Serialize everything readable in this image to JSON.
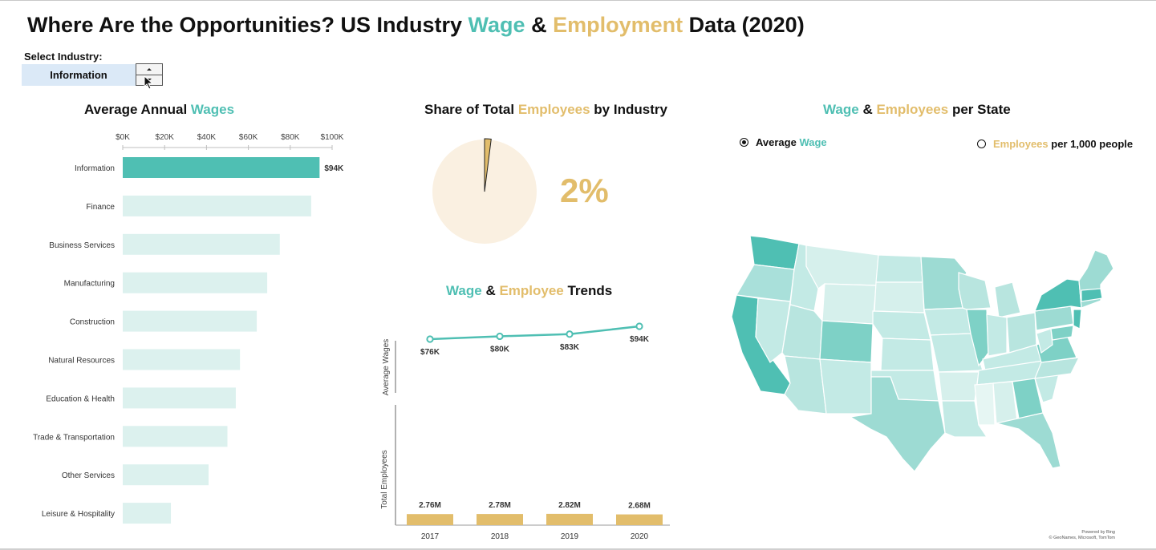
{
  "title": {
    "part1": "Where Are the Opportunities? US Industry ",
    "wage": "Wage",
    "amp": " & ",
    "employment": "Employment",
    "part2": " Data (2020)"
  },
  "selector": {
    "label": "Select Industry:",
    "value": "Information"
  },
  "wages_panel": {
    "title_a": "Average Annual ",
    "title_b": "Wages"
  },
  "share_panel": {
    "title_a": "Share of Total ",
    "title_b": "Employees",
    "title_c": " by Industry",
    "percent_label": "2%"
  },
  "trend_panel": {
    "title_a": "Wage",
    "title_b": " & ",
    "title_c": "Employee",
    "title_d": " Trends"
  },
  "state_panel": {
    "title_a": "Wage",
    "title_b": " & ",
    "title_c": "Employees",
    "title_d": " per State",
    "radio_wage_a": "Average ",
    "radio_wage_b": "Wage",
    "radio_emp_a": "Employees",
    "radio_emp_b": " per 1,000 people",
    "selected": "Average Wage",
    "credit_line1": "Powered by Bing",
    "credit_line2": "© GeoNames, Microsoft, TomTom"
  },
  "colors": {
    "teal": "#4fbfb3",
    "teal_light": "#dcf1ee",
    "gold": "#e2bd6b",
    "pie_light": "#faf0e1"
  },
  "chart_data": [
    {
      "type": "bar",
      "orientation": "horizontal",
      "title": "Average Annual Wages",
      "categories": [
        "Information",
        "Finance",
        "Business Services",
        "Manufacturing",
        "Construction",
        "Natural Resources",
        "Education & Health",
        "Trade & Transportation",
        "Other Services",
        "Leisure & Hospitality"
      ],
      "values": [
        94,
        90,
        75,
        69,
        64,
        56,
        54,
        50,
        41,
        23
      ],
      "units": "K",
      "highlighted": "Information",
      "highlight_label": "$94K",
      "xlim": [
        0,
        100
      ],
      "x_ticks": [
        "$0K",
        "$20K",
        "$40K",
        "$60K",
        "$80K",
        "$100K"
      ],
      "x_tick_values": [
        0,
        20,
        40,
        60,
        80,
        100
      ]
    },
    {
      "type": "pie",
      "title": "Share of Total Employees by Industry",
      "slices": [
        {
          "label": "Information",
          "value": 2
        },
        {
          "label": "Other",
          "value": 98
        }
      ]
    },
    {
      "type": "line",
      "title": "Wage & Employee Trends",
      "ylabel": "Average  Wages",
      "x": [
        "2017",
        "2018",
        "2019",
        "2020"
      ],
      "values": [
        76,
        80,
        83,
        94
      ],
      "labels": [
        "$76K",
        "$80K",
        "$83K",
        "$94K"
      ]
    },
    {
      "type": "bar",
      "ylabel": "Total Employees",
      "categories": [
        "2017",
        "2018",
        "2019",
        "2020"
      ],
      "values": [
        2.76,
        2.78,
        2.82,
        2.68
      ],
      "labels": [
        "2.76M",
        "2.78M",
        "2.82M",
        "2.68M"
      ]
    }
  ]
}
